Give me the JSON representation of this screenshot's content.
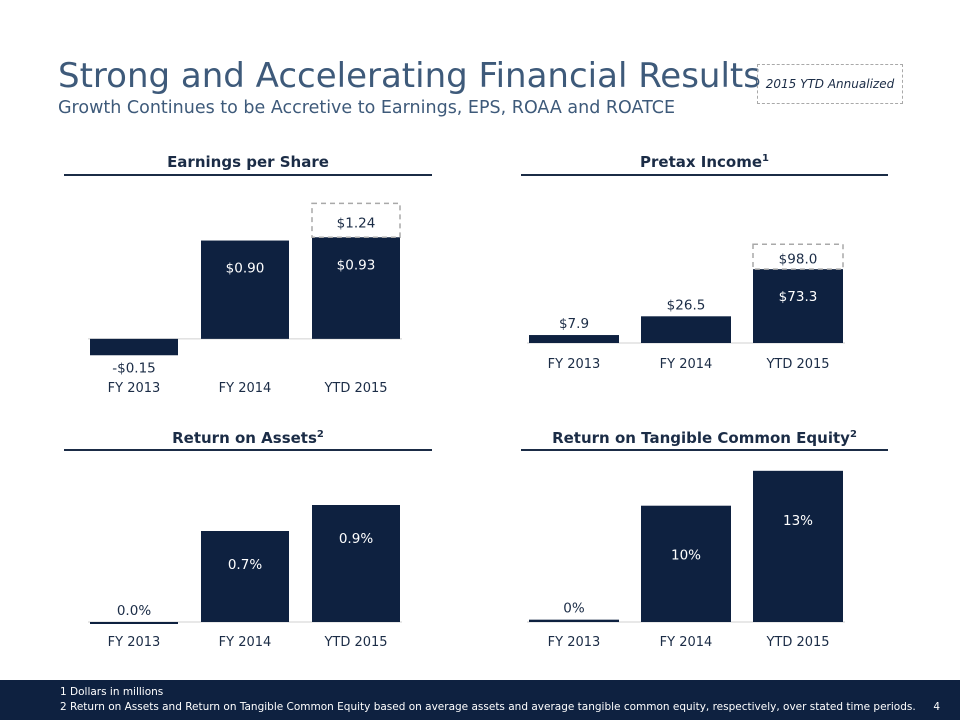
{
  "slide": {
    "title": "Strong and Accelerating Financial Results",
    "subtitle": "Growth Continues to be Accretive to Earnings, EPS, ROAA and ROATCE",
    "annualized_label": "2015 YTD Annualized",
    "page_number": "4"
  },
  "footnotes": [
    "1  Dollars in millions",
    "2  Return on Assets and Return on Tangible Common Equity based on average assets and average tangible common equity, respectively, over stated time periods."
  ],
  "colors": {
    "bar": "#0e2140",
    "title": "#3e5a7a",
    "footer": "#0e2140",
    "dashed": "#a9a9a9"
  },
  "chart_data": [
    {
      "type": "bar",
      "title": "Earnings per Share",
      "title_sup": "",
      "categories": [
        "FY 2013",
        "FY 2014",
        "YTD 2015"
      ],
      "values": [
        -0.15,
        0.9,
        0.93
      ],
      "labels": [
        "-$0.15",
        "$0.90",
        "$0.93"
      ],
      "annualized": {
        "index": 2,
        "value": 1.24,
        "label": "$1.24"
      },
      "ylim": [
        -0.23,
        1.39
      ]
    },
    {
      "type": "bar",
      "title": "Pretax Income",
      "title_sup": "1",
      "categories": [
        "FY 2013",
        "FY 2014",
        "YTD 2015"
      ],
      "values": [
        7.9,
        26.5,
        73.3
      ],
      "labels": [
        "$7.9",
        "$26.5",
        "$73.3"
      ],
      "annualized": {
        "index": 2,
        "value": 98.0,
        "label": "$98.0"
      },
      "ylim": [
        0,
        134
      ]
    },
    {
      "type": "bar",
      "title": "Return on Assets",
      "title_sup": "2",
      "categories": [
        "FY 2013",
        "FY 2014",
        "YTD 2015"
      ],
      "values": [
        0.0,
        0.7,
        0.9
      ],
      "labels": [
        "0.0%",
        "0.7%",
        "0.9%"
      ],
      "ylim": [
        0,
        1.0
      ]
    },
    {
      "type": "bar",
      "title": "Return on Tangible Common Equity",
      "title_sup": "2",
      "categories": [
        "FY 2013",
        "FY 2014",
        "YTD 2015"
      ],
      "values": [
        0.2,
        10,
        13
      ],
      "labels": [
        "0%",
        "10%",
        "13%"
      ],
      "ylim": [
        0,
        13.5
      ]
    }
  ]
}
